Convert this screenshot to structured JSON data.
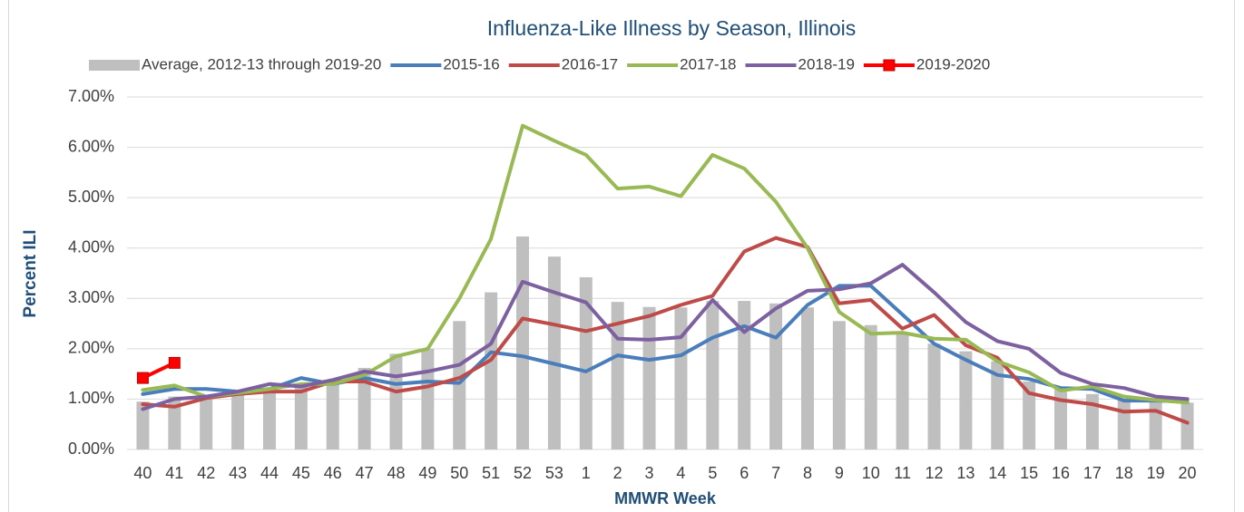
{
  "chart_data": {
    "type": "combo",
    "title": "Influenza-Like Illness by Season, Illinois",
    "y_label": "Percent ILI",
    "x_label": "MMWR Week",
    "categories": [
      "40",
      "41",
      "42",
      "43",
      "44",
      "45",
      "46",
      "47",
      "48",
      "49",
      "50",
      "51",
      "52",
      "53",
      "1",
      "2",
      "3",
      "4",
      "5",
      "6",
      "7",
      "8",
      "9",
      "10",
      "11",
      "12",
      "13",
      "14",
      "15",
      "16",
      "17",
      "18",
      "19",
      "20"
    ],
    "ylim": [
      0,
      7
    ],
    "yticks": [
      {
        "value": 0,
        "label": "0.00%"
      },
      {
        "value": 1,
        "label": "1.00%"
      },
      {
        "value": 2,
        "label": "2.00%"
      },
      {
        "value": 3,
        "label": "3.00%"
      },
      {
        "value": 4,
        "label": "4.00%"
      },
      {
        "value": 5,
        "label": "5.00%"
      },
      {
        "value": 6,
        "label": "6.00%"
      },
      {
        "value": 7,
        "label": "7.00%"
      }
    ],
    "grid": true,
    "legend": "top",
    "series": [
      {
        "name": "Average, 2012-13 through 2019-20",
        "type": "bar",
        "color": "#bfbfbf",
        "values": [
          0.95,
          1.05,
          1.0,
          1.08,
          1.15,
          1.25,
          1.3,
          1.62,
          1.9,
          2.0,
          2.55,
          3.12,
          4.23,
          3.83,
          3.42,
          2.93,
          2.83,
          2.82,
          2.95,
          2.95,
          2.9,
          2.82,
          2.55,
          2.47,
          2.3,
          2.1,
          1.95,
          1.75,
          1.35,
          1.2,
          1.1,
          1.0,
          0.97,
          0.93
        ]
      },
      {
        "name": "2015-16",
        "type": "line",
        "color": "#4a7ebb",
        "values": [
          1.1,
          1.2,
          1.2,
          1.15,
          1.2,
          1.42,
          1.3,
          1.42,
          1.3,
          1.35,
          1.32,
          1.93,
          1.85,
          1.7,
          1.55,
          1.87,
          1.78,
          1.87,
          2.22,
          2.45,
          2.22,
          2.87,
          3.25,
          3.25,
          2.68,
          2.1,
          1.78,
          1.48,
          1.4,
          1.22,
          1.2,
          0.97,
          0.97,
          0.95
        ]
      },
      {
        "name": "2016-17",
        "type": "line",
        "color": "#be4b48",
        "values": [
          0.9,
          0.85,
          1.02,
          1.1,
          1.15,
          1.15,
          1.35,
          1.35,
          1.15,
          1.25,
          1.42,
          1.78,
          2.6,
          2.48,
          2.35,
          2.5,
          2.65,
          2.87,
          3.05,
          3.93,
          4.2,
          4.02,
          2.9,
          2.97,
          2.4,
          2.67,
          2.07,
          1.82,
          1.12,
          0.98,
          0.9,
          0.75,
          0.77,
          0.53
        ]
      },
      {
        "name": "2017-18",
        "type": "line",
        "color": "#98b954",
        "values": [
          1.18,
          1.27,
          1.05,
          1.12,
          1.2,
          1.3,
          1.3,
          1.48,
          1.85,
          2.0,
          3.0,
          4.18,
          6.43,
          6.13,
          5.85,
          5.18,
          5.22,
          5.03,
          5.85,
          5.58,
          4.92,
          4.0,
          2.73,
          2.3,
          2.32,
          2.2,
          2.18,
          1.75,
          1.53,
          1.17,
          1.25,
          1.05,
          0.98,
          0.93
        ]
      },
      {
        "name": "2018-19",
        "type": "line",
        "color": "#7d60a0",
        "values": [
          0.8,
          1.0,
          1.05,
          1.15,
          1.3,
          1.25,
          1.38,
          1.55,
          1.45,
          1.55,
          1.68,
          2.1,
          3.33,
          3.12,
          2.92,
          2.2,
          2.18,
          2.23,
          2.97,
          2.33,
          2.8,
          3.15,
          3.18,
          3.3,
          3.67,
          3.12,
          2.53,
          2.15,
          2.0,
          1.52,
          1.3,
          1.22,
          1.05,
          1.0
        ]
      },
      {
        "name": "2019-2020",
        "type": "line",
        "color": "#ff0000",
        "marker": "square",
        "values": [
          1.42,
          1.72,
          null,
          null,
          null,
          null,
          null,
          null,
          null,
          null,
          null,
          null,
          null,
          null,
          null,
          null,
          null,
          null,
          null,
          null,
          null,
          null,
          null,
          null,
          null,
          null,
          null,
          null,
          null,
          null,
          null,
          null,
          null,
          null
        ]
      }
    ]
  }
}
